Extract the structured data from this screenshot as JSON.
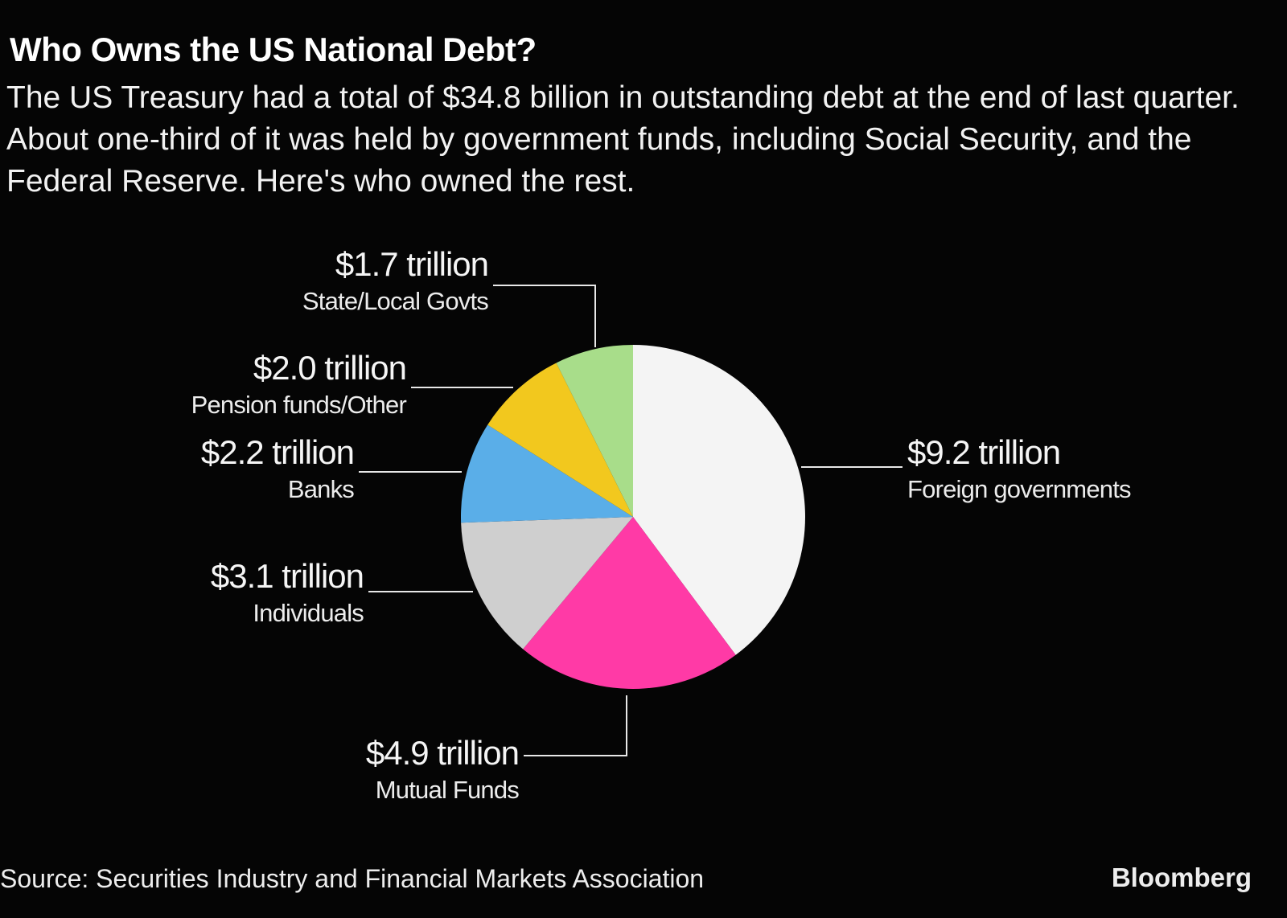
{
  "header": {
    "title": "Who Owns the US National Debt?",
    "subtitle": "The US Treasury had a total of $34.8 billion in outstanding debt at the end of last quarter. About one-third of it was held by government funds, including Social Security, and the Federal Reserve. Here's who owned the rest."
  },
  "footer": {
    "source": "Source: Securities Industry and Financial Markets Association",
    "brand": "Bloomberg"
  },
  "chart_data": {
    "type": "pie",
    "unit": "trillion",
    "slices": [
      {
        "name": "Foreign governments",
        "value": 9.2,
        "value_label": "$9.2 trillion",
        "color": "#f4f4f4"
      },
      {
        "name": "Mutual Funds",
        "value": 4.9,
        "value_label": "$4.9 trillion",
        "color": "#ff3aa6"
      },
      {
        "name": "Individuals",
        "value": 3.1,
        "value_label": "$3.1 trillion",
        "color": "#cfcfcf"
      },
      {
        "name": "Banks",
        "value": 2.2,
        "value_label": "$2.2 trillion",
        "color": "#5aaee8"
      },
      {
        "name": "Pension funds/Other",
        "value": 2.0,
        "value_label": "$2.0 trillion",
        "color": "#f2c81e"
      },
      {
        "name": "State/Local Govts",
        "value": 1.7,
        "value_label": "$1.7 trillion",
        "color": "#a8dd8a"
      }
    ],
    "start": "12 o'clock",
    "direction": "clockwise",
    "legend": "none",
    "labels": "outside with leader lines"
  }
}
